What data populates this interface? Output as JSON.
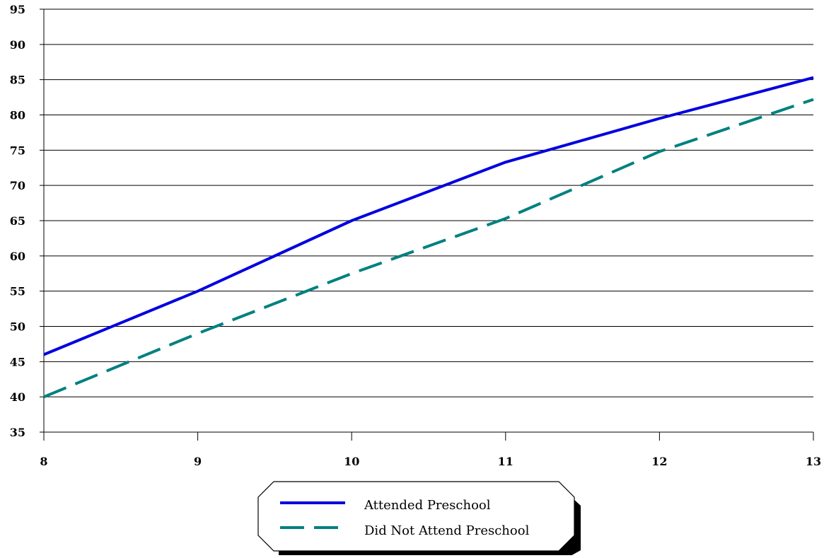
{
  "chart_data": {
    "type": "line",
    "title": "",
    "xlabel": "",
    "ylabel": "",
    "x": [
      8,
      9,
      10,
      11,
      12,
      13
    ],
    "xlim": [
      8,
      13
    ],
    "ylim": [
      35,
      95
    ],
    "y_ticks": [
      35,
      40,
      45,
      50,
      55,
      60,
      65,
      70,
      75,
      80,
      85,
      90,
      95
    ],
    "grid": "horizontal",
    "legend_position": "bottom-center",
    "series": [
      {
        "name": "Attended Preschool",
        "values": [
          46,
          55,
          65,
          73.3,
          79.5,
          85.3
        ],
        "color": "#0000e0",
        "style": "solid"
      },
      {
        "name": "Did Not Attend Preschool",
        "values": [
          40,
          49,
          57.5,
          65.3,
          74.8,
          82.2
        ],
        "color": "#008080",
        "style": "dashed"
      }
    ]
  }
}
